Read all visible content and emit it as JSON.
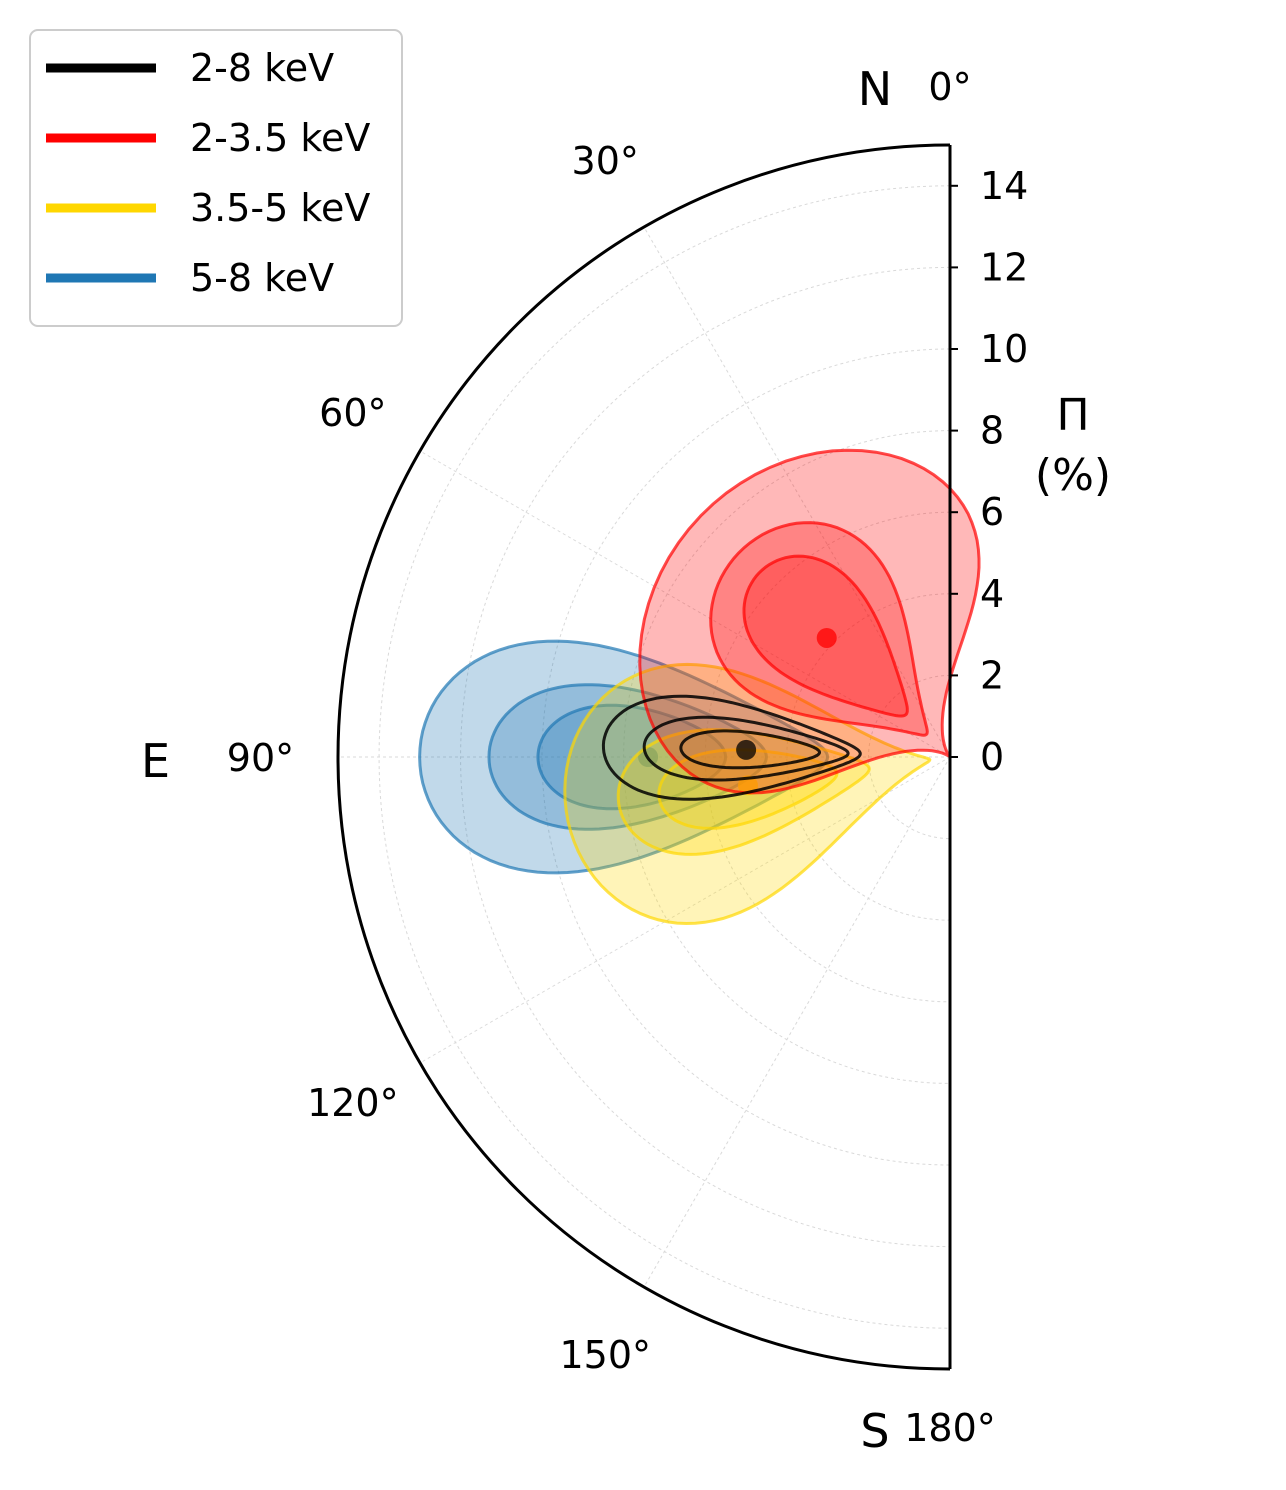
{
  "chart_data": {
    "type": "polar-contour",
    "theta_range_deg": [
      0,
      180
    ],
    "theta_direction": "counter-clockwise toward East (left)",
    "r_range": [
      0,
      15
    ],
    "radial_ticks": [
      0,
      2,
      4,
      6,
      8,
      10,
      12,
      14
    ],
    "radial_label": "Π\n(%)",
    "angle_ticks": [
      {
        "deg": 0,
        "label": "0°",
        "compass": "N"
      },
      {
        "deg": 30,
        "label": "30°"
      },
      {
        "deg": 60,
        "label": "60°"
      },
      {
        "deg": 90,
        "label": "90°",
        "compass": "E"
      },
      {
        "deg": 120,
        "label": "120°"
      },
      {
        "deg": 150,
        "label": "150°"
      },
      {
        "deg": 180,
        "label": "180°",
        "compass": "S"
      }
    ],
    "grid": true,
    "legend_position": "top-left",
    "series": [
      {
        "name": "2-8 keV",
        "color": "#000000",
        "filled": false,
        "best_fit": {
          "pd_percent": 5.0,
          "angle_deg": 88
        },
        "contours": [
          {
            "pd_min": 2.2,
            "pd_max": 8.5,
            "half_width_deg": 12
          },
          {
            "pd_min": 2.5,
            "pd_max": 7.5,
            "half_width_deg": 8
          },
          {
            "pd_min": 3.2,
            "pd_max": 6.6,
            "half_width_deg": 5
          }
        ]
      },
      {
        "name": "2-3.5 keV",
        "color": "#ff0000",
        "filled": true,
        "best_fit": {
          "pd_percent": 4.2,
          "angle_deg": 46
        },
        "contours": [
          {
            "pd_min": 0.0,
            "pd_max": 8.5,
            "half_width_deg": 55
          },
          {
            "pd_min": 0.8,
            "pd_max": 7.2,
            "half_width_deg": 28
          },
          {
            "pd_min": 1.5,
            "pd_max": 6.5,
            "half_width_deg": 18
          }
        ]
      },
      {
        "name": "3.5-5 keV",
        "color": "#ffd700",
        "filled": true,
        "best_fit": {
          "pd_percent": 5.0,
          "angle_deg": 98
        },
        "contours": [
          {
            "pd_min": 0.5,
            "pd_max": 9.5,
            "half_width_deg": 30
          },
          {
            "pd_min": 2.0,
            "pd_max": 8.2,
            "half_width_deg": 15
          },
          {
            "pd_min": 2.8,
            "pd_max": 7.2,
            "half_width_deg": 10
          }
        ]
      },
      {
        "name": "5-8 keV",
        "color": "#1f77b4",
        "filled": true,
        "best_fit": {
          "pd_percent": 7.4,
          "angle_deg": 90
        },
        "contours": [
          {
            "pd_min": 3.0,
            "pd_max": 13.0,
            "half_width_deg": 18
          },
          {
            "pd_min": 4.5,
            "pd_max": 11.3,
            "half_width_deg": 12
          },
          {
            "pd_min": 5.5,
            "pd_max": 10.1,
            "half_width_deg": 9
          }
        ]
      }
    ]
  }
}
